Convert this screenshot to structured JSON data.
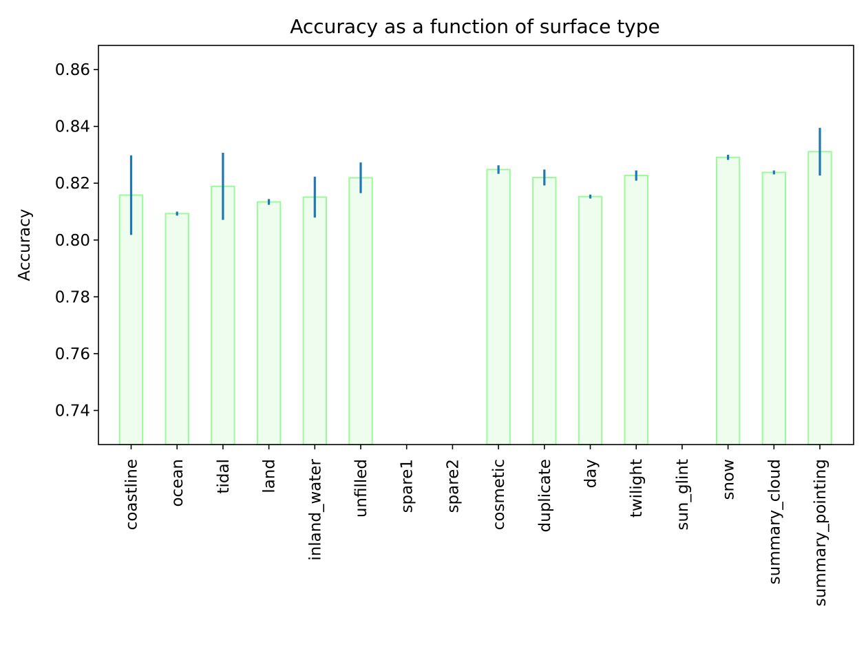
{
  "chart_data": {
    "type": "bar",
    "title": "Accuracy as a function of surface type",
    "xlabel": "",
    "ylabel": "Accuracy",
    "ylim": [
      0.728,
      0.8685
    ],
    "yticks": [
      0.74,
      0.76,
      0.78,
      0.8,
      0.82,
      0.84,
      0.86
    ],
    "ytick_labels": [
      "0.74",
      "0.76",
      "0.78",
      "0.80",
      "0.82",
      "0.84",
      "0.86"
    ],
    "grid": false,
    "legend": "none",
    "categories": [
      "coastline",
      "ocean",
      "tidal",
      "land",
      "inland_water",
      "unfilled",
      "spare1",
      "spare2",
      "cosmetic",
      "duplicate",
      "day",
      "twilight",
      "sun_glint",
      "snow",
      "summary_cloud",
      "summary_pointing"
    ],
    "values": [
      0.8158,
      0.8093,
      0.8189,
      0.8134,
      0.8151,
      0.8219,
      null,
      null,
      0.8248,
      0.822,
      0.8153,
      0.8227,
      null,
      0.8291,
      0.8238,
      0.8311
    ],
    "errors": [
      0.014,
      0.0007,
      0.0118,
      0.001,
      0.0072,
      0.0054,
      null,
      null,
      0.0015,
      0.0028,
      0.0007,
      0.0018,
      null,
      0.0009,
      0.0007,
      0.0084
    ],
    "colors": {
      "bar_fill": "#effdef",
      "bar_edge": "#98fb98",
      "error_bar": "#1f77b4",
      "axis": "#000000"
    }
  }
}
